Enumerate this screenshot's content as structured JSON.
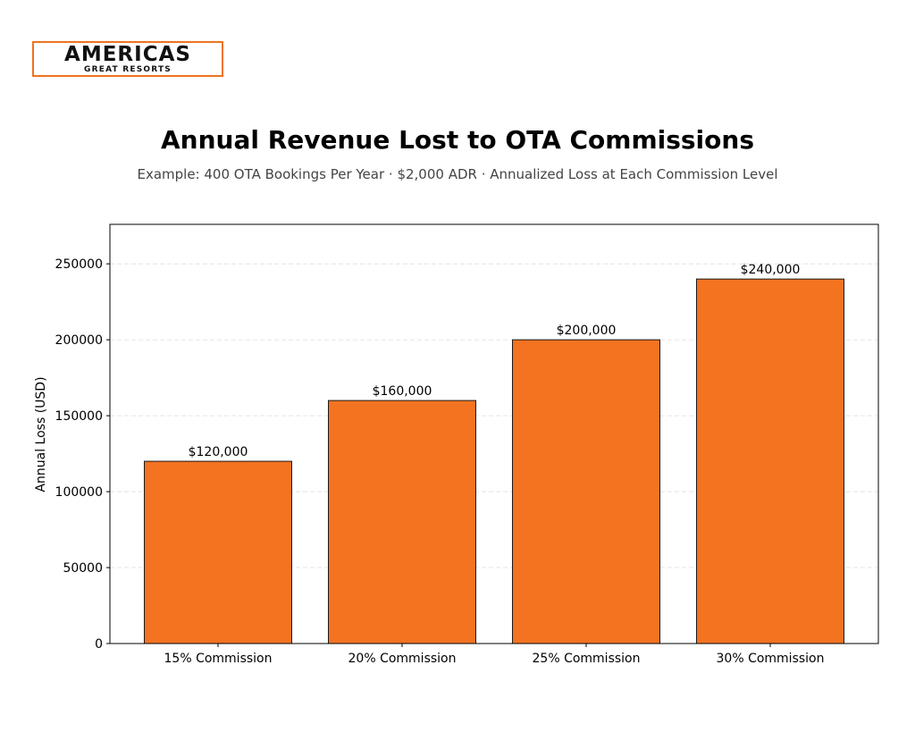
{
  "logo": {
    "main": "AMERICAS",
    "sub": "GREAT RESORTS",
    "accent": "#f07320"
  },
  "header": {
    "title": "Annual Revenue Lost to OTA Commissions",
    "subtitle": "Example: 400 OTA Bookings Per Year · $2,000 ADR · Annualized Loss at Each Commission Level"
  },
  "chart_data": {
    "type": "bar",
    "title": "Annual Revenue Lost to OTA Commissions",
    "xlabel": "",
    "ylabel": "Annual Loss (USD)",
    "categories": [
      "15% Commission",
      "20% Commission",
      "25% Commission",
      "30% Commission"
    ],
    "values": [
      120000,
      160000,
      200000,
      240000
    ],
    "data_labels": [
      "$120,000",
      "$160,000",
      "$200,000",
      "$240,000"
    ],
    "ylim": [
      0,
      276000
    ],
    "yticks": [
      0,
      50000,
      100000,
      150000,
      200000,
      250000
    ],
    "ytick_labels": [
      "0",
      "50000",
      "100000",
      "150000",
      "200000",
      "250000"
    ],
    "grid": "y dashed",
    "bar_color": "#f37321",
    "edge_color": "#1a1a1a"
  }
}
